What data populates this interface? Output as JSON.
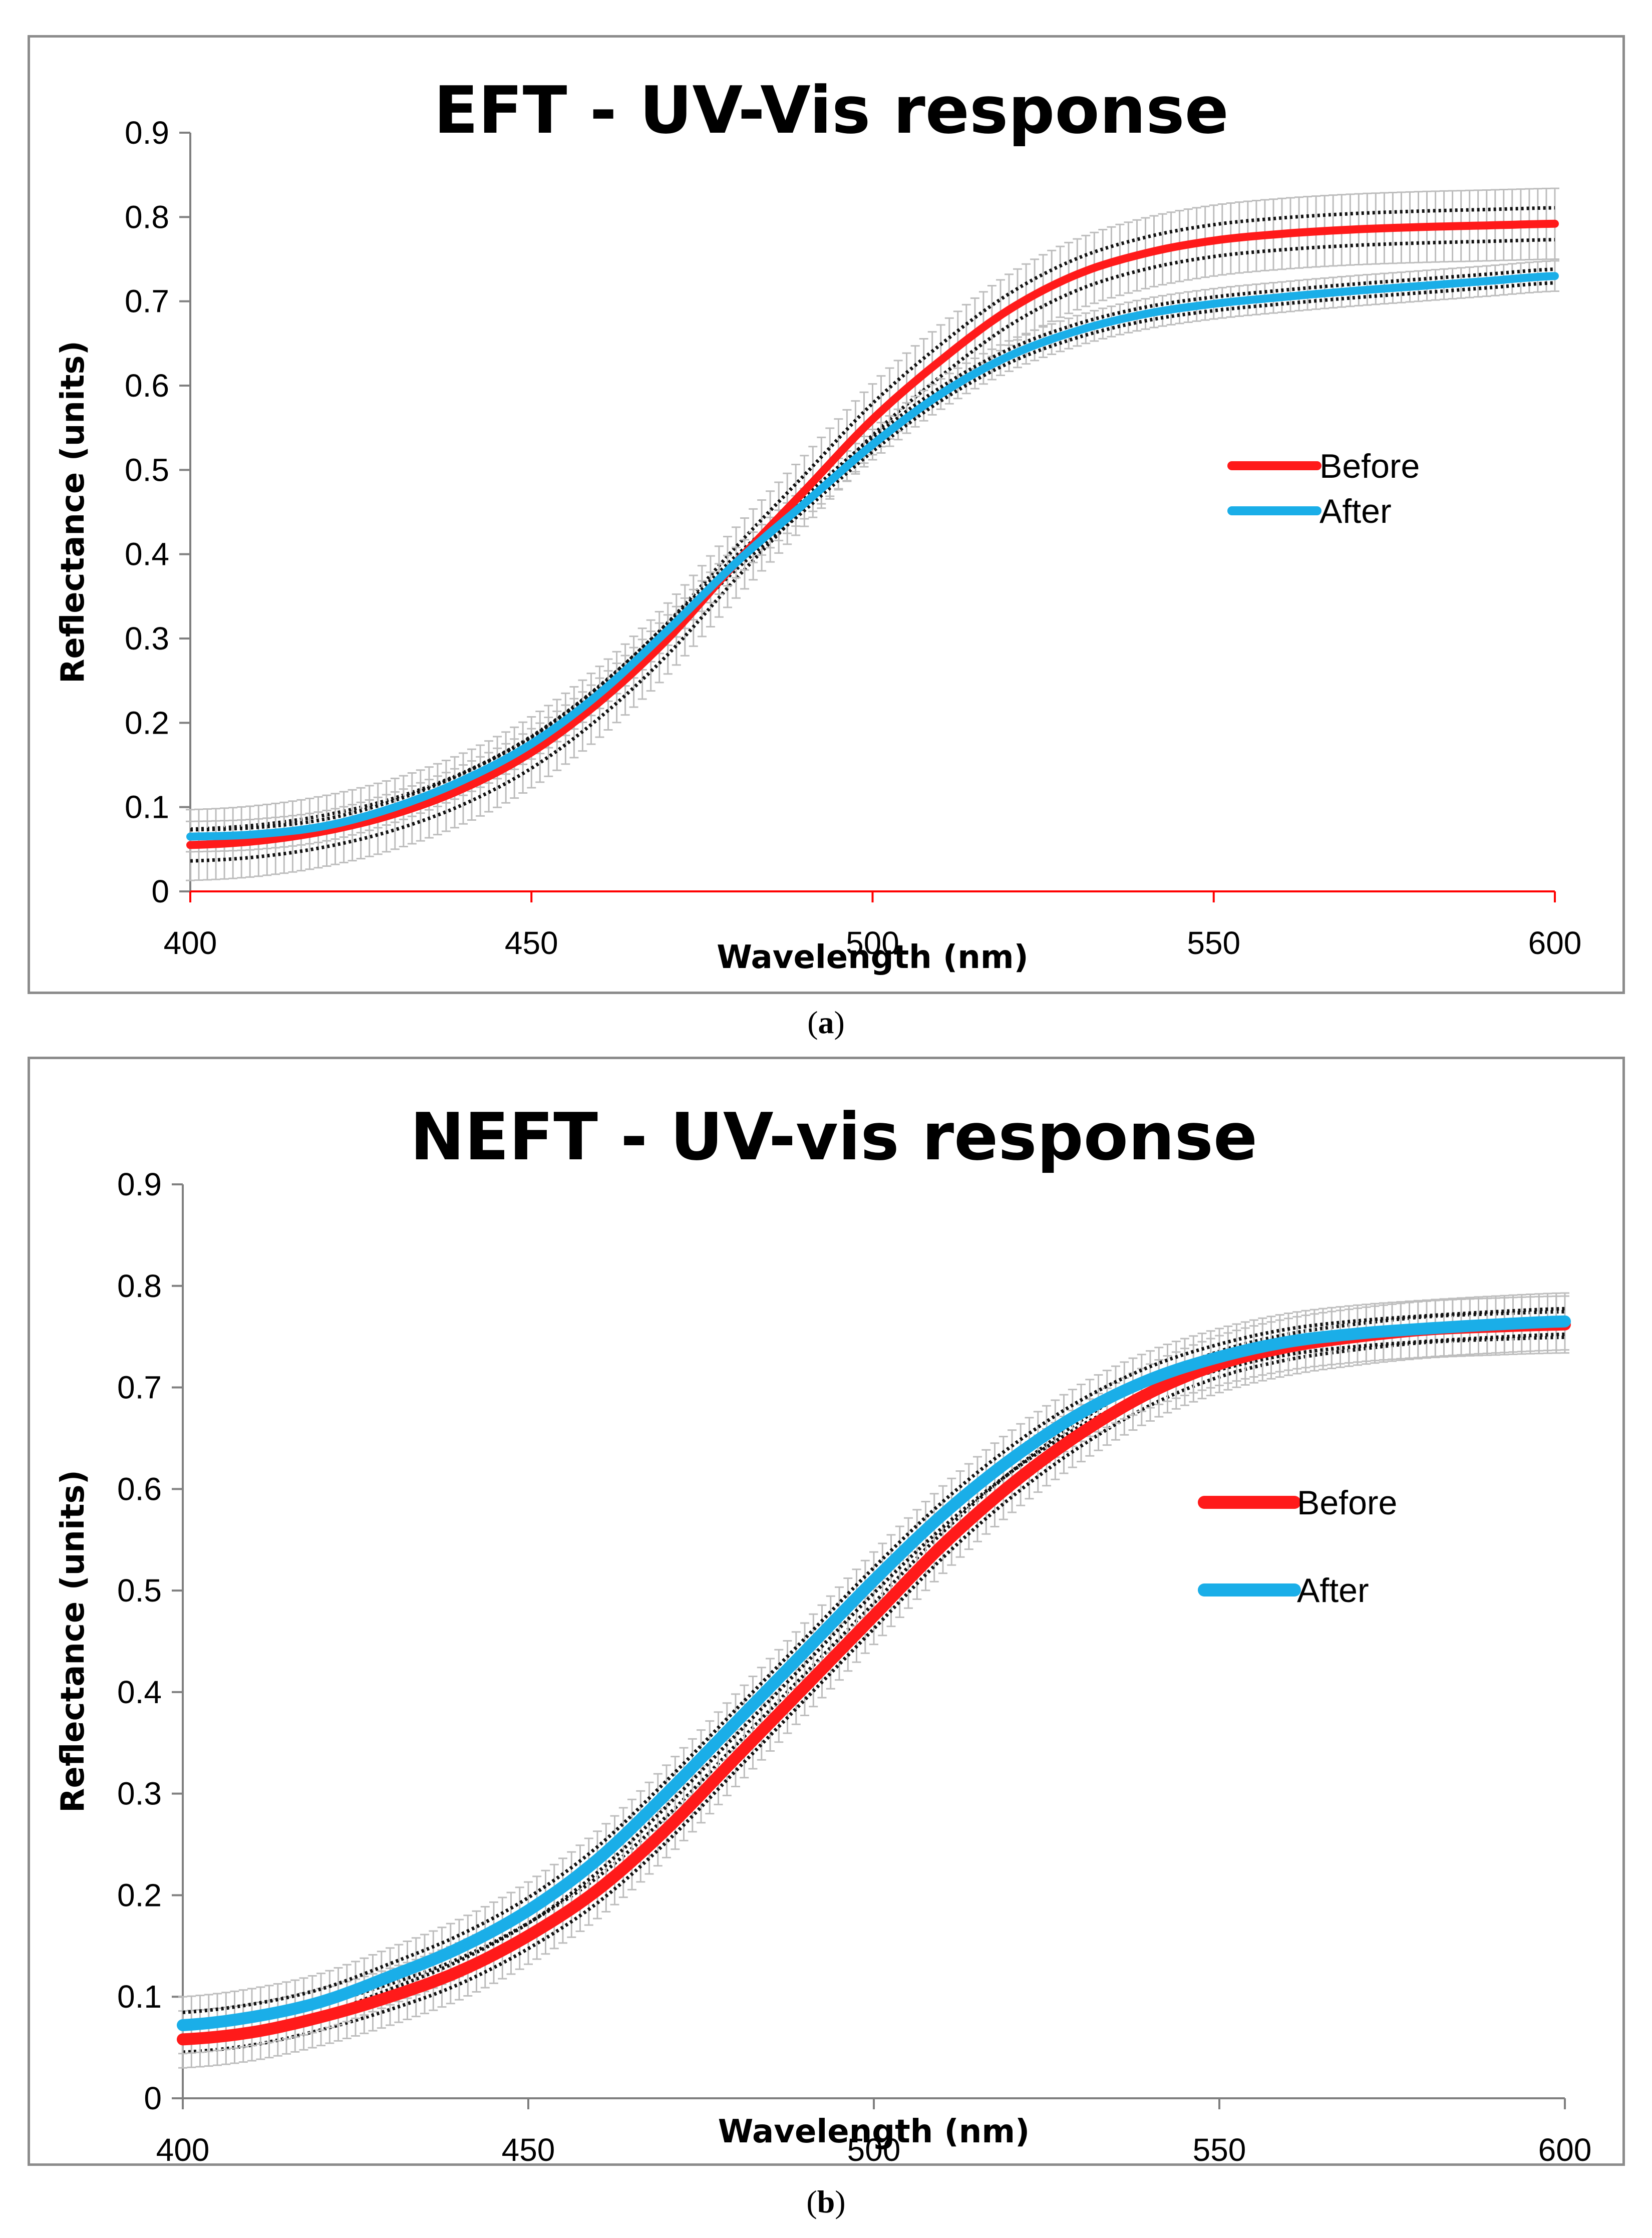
{
  "chart_data": [
    {
      "panel": "a",
      "type": "line",
      "title": "EFT - UV-Vis response",
      "xlabel": "Wavelength (nm)",
      "ylabel": "Reflectance (units)",
      "xlim": [
        400,
        600
      ],
      "ylim": [
        0,
        0.9
      ],
      "xticks": [
        "400",
        "450",
        "500",
        "550",
        "600"
      ],
      "yticks": [
        "0",
        "0.1",
        "0.2",
        "0.3",
        "0.4",
        "0.5",
        "0.6",
        "0.7",
        "0.8",
        "0.9"
      ],
      "x": [
        400,
        410,
        420,
        430,
        440,
        450,
        460,
        470,
        480,
        490,
        500,
        510,
        520,
        530,
        540,
        550,
        560,
        570,
        580,
        590,
        600
      ],
      "series": [
        {
          "name": "Before",
          "color": "#ff1a1a",
          "error": 0.042,
          "values": [
            0.055,
            0.06,
            0.072,
            0.092,
            0.122,
            0.165,
            0.225,
            0.3,
            0.39,
            0.475,
            0.56,
            0.63,
            0.69,
            0.732,
            0.757,
            0.772,
            0.78,
            0.785,
            0.788,
            0.79,
            0.792
          ]
        },
        {
          "name": "After",
          "color": "#1aaee8",
          "error": 0.018,
          "values": [
            0.065,
            0.068,
            0.078,
            0.1,
            0.132,
            0.175,
            0.235,
            0.31,
            0.39,
            0.46,
            0.53,
            0.59,
            0.635,
            0.665,
            0.685,
            0.697,
            0.705,
            0.712,
            0.718,
            0.724,
            0.73
          ]
        }
      ],
      "legend_position": "right"
    },
    {
      "panel": "b",
      "type": "line",
      "title": "NEFT - UV-vis response",
      "xlabel": "Wavelength (nm)",
      "ylabel": "Reflectance (units)",
      "xlim": [
        400,
        600
      ],
      "ylim": [
        0,
        0.9
      ],
      "xticks": [
        "400",
        "450",
        "500",
        "550",
        "600"
      ],
      "yticks": [
        "0",
        "0.1",
        "0.2",
        "0.3",
        "0.4",
        "0.5",
        "0.6",
        "0.7",
        "0.8",
        "0.9"
      ],
      "x": [
        400,
        410,
        420,
        430,
        440,
        450,
        460,
        470,
        480,
        490,
        500,
        510,
        520,
        530,
        540,
        550,
        560,
        570,
        580,
        590,
        600
      ],
      "series": [
        {
          "name": "Before",
          "color": "#ff1a1a",
          "error": 0.028,
          "values": [
            0.058,
            0.065,
            0.08,
            0.1,
            0.125,
            0.16,
            0.205,
            0.265,
            0.335,
            0.405,
            0.475,
            0.545,
            0.605,
            0.655,
            0.695,
            0.723,
            0.74,
            0.75,
            0.757,
            0.76,
            0.762
          ]
        },
        {
          "name": "After",
          "color": "#1aaee8",
          "error": 0.028,
          "values": [
            0.072,
            0.08,
            0.095,
            0.12,
            0.148,
            0.185,
            0.235,
            0.3,
            0.37,
            0.44,
            0.51,
            0.575,
            0.63,
            0.675,
            0.708,
            0.73,
            0.745,
            0.753,
            0.758,
            0.762,
            0.765
          ]
        }
      ],
      "legend_position": "right"
    }
  ],
  "captions": {
    "a": "a",
    "b": "b"
  }
}
